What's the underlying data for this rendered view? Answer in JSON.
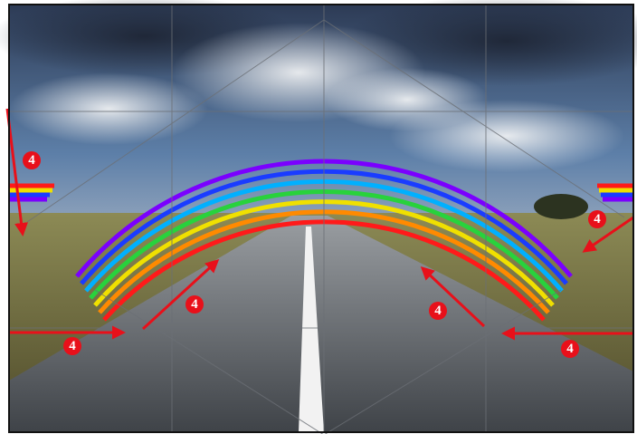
{
  "annotations": [
    {
      "label": "4"
    },
    {
      "label": "4"
    },
    {
      "label": "4"
    },
    {
      "label": "4"
    },
    {
      "label": "4"
    },
    {
      "label": "4"
    }
  ]
}
